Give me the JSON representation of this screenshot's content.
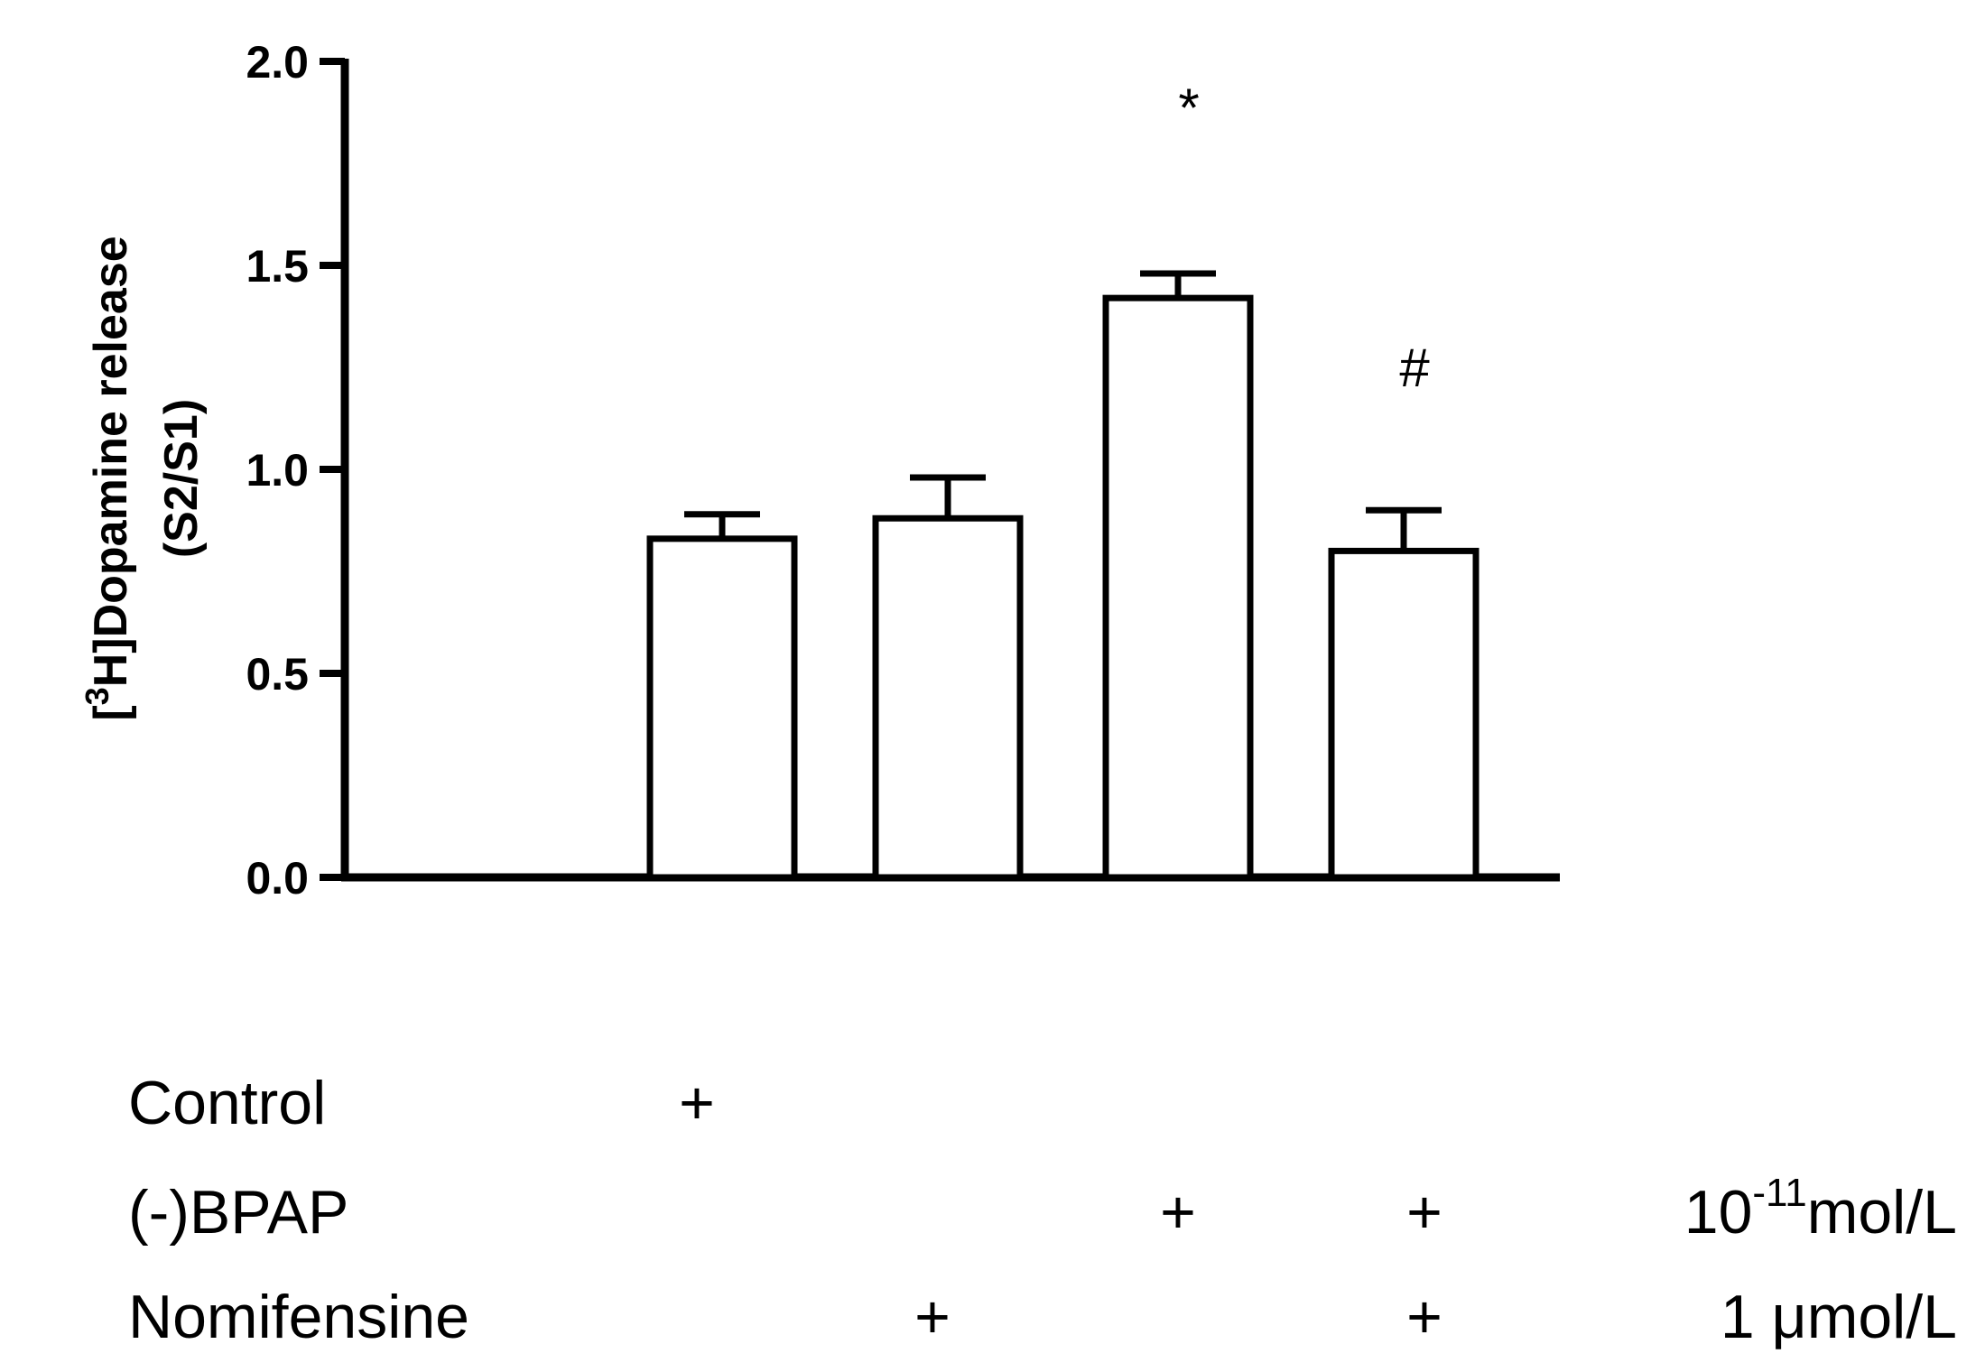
{
  "chart_data": {
    "type": "bar",
    "categories": [
      "Control",
      "Nomifensine",
      "(-)BPAP",
      "(-)BPAP + Nomifensine"
    ],
    "values": [
      0.83,
      0.88,
      1.42,
      0.8
    ],
    "errors": [
      0.06,
      0.1,
      0.06,
      0.1
    ],
    "annotations": [
      "",
      "",
      "*",
      "#"
    ],
    "ylabel_prefix": "[",
    "ylabel_sup": "3",
    "ylabel_main": "H]Dopamine release",
    "ylabel_line2": "(S2/S1)",
    "ylim": [
      0,
      2.0
    ],
    "yticks": [
      "0.0",
      "0.5",
      "1.0",
      "1.5",
      "2.0"
    ],
    "grid": false,
    "bar_fill": "#ffffff",
    "bar_stroke": "#000000"
  },
  "treatment_table": {
    "rows": [
      {
        "label": "Control",
        "marks": [
          "+",
          "",
          "",
          ""
        ],
        "unit_base": "",
        "unit_sup": "",
        "unit_tail": ""
      },
      {
        "label": "(-)BPAP",
        "marks": [
          "",
          "",
          "+",
          "+"
        ],
        "unit_base": "10",
        "unit_sup": "-11",
        "unit_tail": "mol/L"
      },
      {
        "label": "Nomifensine",
        "marks": [
          "",
          "+",
          "",
          "+"
        ],
        "unit_base": "1 ",
        "unit_sup": "",
        "unit_tail": "μmol/L"
      }
    ]
  }
}
